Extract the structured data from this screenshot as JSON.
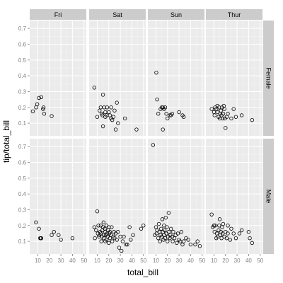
{
  "chart_data": {
    "type": "scatter",
    "title": "",
    "xlabel": "total_bill",
    "ylabel": "tip/total_bill",
    "xlim": [
      3,
      52
    ],
    "ylim": [
      0.02,
      0.75
    ],
    "xticks": [
      10,
      20,
      30,
      40,
      50
    ],
    "yticks": [
      0.1,
      0.2,
      0.3,
      0.4,
      0.5,
      0.6,
      0.7
    ],
    "col_facet_labels": [
      "Fri",
      "Sat",
      "Sun",
      "Thur"
    ],
    "row_facet_labels": [
      "Female",
      "Male"
    ],
    "grid": true,
    "colors": {
      "panel": "#ebebeb",
      "grid_major": "#ffffff",
      "grid_minor": "#f5f5f5",
      "strip": "#cccccc",
      "point": "#000000",
      "text": "#7f7f7f",
      "axis_title": "#000000"
    },
    "panels": [
      {
        "day": "Fri",
        "sex": "Female",
        "points": [
          [
            5.7,
            0.175
          ],
          [
            8.5,
            0.2
          ],
          [
            9.5,
            0.22
          ],
          [
            11,
            0.26
          ],
          [
            13,
            0.265
          ],
          [
            14.5,
            0.19
          ],
          [
            15,
            0.2
          ],
          [
            15.5,
            0.16
          ],
          [
            22,
            0.145
          ]
        ]
      },
      {
        "day": "Sat",
        "sex": "Female",
        "points": [
          [
            7.5,
            0.325
          ],
          [
            10,
            0.14
          ],
          [
            12,
            0.18
          ],
          [
            13,
            0.2
          ],
          [
            14,
            0.16
          ],
          [
            14.5,
            0.15
          ],
          [
            15,
            0.08
          ],
          [
            15,
            0.28
          ],
          [
            16,
            0.2
          ],
          [
            17,
            0.14
          ],
          [
            17,
            0.17
          ],
          [
            18,
            0.15
          ],
          [
            18.5,
            0.2
          ],
          [
            20,
            0.17
          ],
          [
            21,
            0.15
          ],
          [
            22,
            0.2
          ],
          [
            22,
            0.13
          ],
          [
            23,
            0.12
          ],
          [
            24,
            0.14
          ],
          [
            25,
            0.18
          ],
          [
            26,
            0.06
          ],
          [
            27,
            0.23
          ],
          [
            28,
            0.1
          ],
          [
            34,
            0.13
          ],
          [
            44,
            0.06
          ]
        ]
      },
      {
        "day": "Sun",
        "sex": "Female",
        "points": [
          [
            10.3,
            0.42
          ],
          [
            11,
            0.25
          ],
          [
            12,
            0.16
          ],
          [
            14,
            0.19
          ],
          [
            15,
            0.2
          ],
          [
            16,
            0.2
          ],
          [
            16,
            0.06
          ],
          [
            17,
            0.19
          ],
          [
            18,
            0.2
          ],
          [
            19,
            0.16
          ],
          [
            20,
            0.13
          ],
          [
            22,
            0.15
          ],
          [
            23,
            0.15
          ],
          [
            24,
            0.16
          ],
          [
            30,
            0.17
          ],
          [
            33,
            0.15
          ],
          [
            34,
            0.14
          ]
        ]
      },
      {
        "day": "Thur",
        "sex": "Female",
        "points": [
          [
            8,
            0.19
          ],
          [
            10,
            0.17
          ],
          [
            10.5,
            0.15
          ],
          [
            11,
            0.2
          ],
          [
            12,
            0.19
          ],
          [
            13,
            0.17
          ],
          [
            13,
            0.21
          ],
          [
            14,
            0.14
          ],
          [
            14.5,
            0.2
          ],
          [
            15,
            0.13
          ],
          [
            15.5,
            0.16
          ],
          [
            16,
            0.18
          ],
          [
            16.5,
            0.15
          ],
          [
            17,
            0.2
          ],
          [
            17.5,
            0.13
          ],
          [
            18,
            0.16
          ],
          [
            18.5,
            0.21
          ],
          [
            19,
            0.19
          ],
          [
            19.5,
            0.13
          ],
          [
            20,
            0.07
          ],
          [
            21,
            0.14
          ],
          [
            22,
            0.16
          ],
          [
            25,
            0.13
          ],
          [
            27,
            0.19
          ],
          [
            29,
            0.14
          ],
          [
            34,
            0.15
          ],
          [
            43,
            0.12
          ]
        ]
      },
      {
        "day": "Fri",
        "sex": "Male",
        "points": [
          [
            8.5,
            0.22
          ],
          [
            11,
            0.18
          ],
          [
            12,
            0.12
          ],
          [
            12.5,
            0.12
          ],
          [
            13,
            0.12
          ],
          [
            22,
            0.14
          ],
          [
            24,
            0.16
          ],
          [
            28,
            0.14
          ],
          [
            30,
            0.11
          ],
          [
            40,
            0.12
          ]
        ]
      },
      {
        "day": "Sat",
        "sex": "Male",
        "points": [
          [
            7.5,
            0.19
          ],
          [
            8,
            0.12
          ],
          [
            9,
            0.17
          ],
          [
            10,
            0.29
          ],
          [
            10.5,
            0.15
          ],
          [
            11,
            0.2
          ],
          [
            11.5,
            0.13
          ],
          [
            12,
            0.14
          ],
          [
            12.5,
            0.16
          ],
          [
            13,
            0.15
          ],
          [
            13,
            0.2
          ],
          [
            13.5,
            0.1
          ],
          [
            14,
            0.13
          ],
          [
            14.5,
            0.17
          ],
          [
            15,
            0.19
          ],
          [
            15.5,
            0.12
          ],
          [
            15.5,
            0.22
          ],
          [
            16,
            0.14
          ],
          [
            16.5,
            0.18
          ],
          [
            17,
            0.1
          ],
          [
            17,
            0.16
          ],
          [
            17.5,
            0.14
          ],
          [
            18,
            0.2
          ],
          [
            18,
            0.11
          ],
          [
            18.5,
            0.15
          ],
          [
            19,
            0.13
          ],
          [
            19.5,
            0.17
          ],
          [
            20,
            0.09
          ],
          [
            20,
            0.19
          ],
          [
            20.5,
            0.15
          ],
          [
            21,
            0.12
          ],
          [
            21,
            0.16
          ],
          [
            22,
            0.14
          ],
          [
            22.5,
            0.19
          ],
          [
            23,
            0.1
          ],
          [
            24,
            0.13
          ],
          [
            24.5,
            0.16
          ],
          [
            25,
            0.12
          ],
          [
            26,
            0.15
          ],
          [
            27,
            0.11
          ],
          [
            28,
            0.16
          ],
          [
            29,
            0.06
          ],
          [
            30,
            0.13
          ],
          [
            31,
            0.04
          ],
          [
            32,
            0.1
          ],
          [
            33,
            0.13
          ],
          [
            35,
            0.08
          ],
          [
            36,
            0.08
          ],
          [
            38,
            0.19
          ],
          [
            39,
            0.11
          ],
          [
            41,
            0.14
          ],
          [
            48,
            0.18
          ],
          [
            50,
            0.2
          ]
        ]
      },
      {
        "day": "Sun",
        "sex": "Male",
        "points": [
          [
            7.5,
            0.71
          ],
          [
            9,
            0.14
          ],
          [
            10,
            0.19
          ],
          [
            10.5,
            0.15
          ],
          [
            11,
            0.17
          ],
          [
            12,
            0.12
          ],
          [
            12.5,
            0.21
          ],
          [
            13,
            0.16
          ],
          [
            13.5,
            0.1
          ],
          [
            14,
            0.14
          ],
          [
            14.5,
            0.18
          ],
          [
            15,
            0.13
          ],
          [
            15.5,
            0.24
          ],
          [
            16,
            0.16
          ],
          [
            16.5,
            0.11
          ],
          [
            17,
            0.2
          ],
          [
            17,
            0.14
          ],
          [
            17.5,
            0.17
          ],
          [
            18,
            0.12
          ],
          [
            18.5,
            0.25
          ],
          [
            19,
            0.15
          ],
          [
            19.5,
            0.19
          ],
          [
            20,
            0.1
          ],
          [
            20.5,
            0.13
          ],
          [
            21,
            0.16
          ],
          [
            21,
            0.28
          ],
          [
            22,
            0.12
          ],
          [
            22.5,
            0.14
          ],
          [
            23,
            0.18
          ],
          [
            24,
            0.13
          ],
          [
            24.5,
            0.1
          ],
          [
            25,
            0.16
          ],
          [
            26,
            0.12
          ],
          [
            27,
            0.14
          ],
          [
            28,
            0.09
          ],
          [
            29,
            0.15
          ],
          [
            30,
            0.11
          ],
          [
            31,
            0.1
          ],
          [
            32,
            0.16
          ],
          [
            33,
            0.08
          ],
          [
            34,
            0.1
          ],
          [
            36,
            0.12
          ],
          [
            38,
            0.11
          ],
          [
            40,
            0.08
          ],
          [
            44,
            0.08
          ],
          [
            46,
            0.1
          ],
          [
            48,
            0.07
          ]
        ]
      },
      {
        "day": "Thur",
        "sex": "Male",
        "points": [
          [
            8,
            0.27
          ],
          [
            9,
            0.19
          ],
          [
            10,
            0.2
          ],
          [
            10.5,
            0.16
          ],
          [
            11,
            0.2
          ],
          [
            12,
            0.12
          ],
          [
            12.5,
            0.15
          ],
          [
            13,
            0.13
          ],
          [
            14,
            0.17
          ],
          [
            14.5,
            0.2
          ],
          [
            15,
            0.24
          ],
          [
            15.5,
            0.14
          ],
          [
            16,
            0.16
          ],
          [
            16.5,
            0.12
          ],
          [
            17,
            0.19
          ],
          [
            17.5,
            0.15
          ],
          [
            18,
            0.21
          ],
          [
            19,
            0.13
          ],
          [
            20,
            0.16
          ],
          [
            21,
            0.12
          ],
          [
            22,
            0.15
          ],
          [
            22,
            0.2
          ],
          [
            24,
            0.11
          ],
          [
            25,
            0.18
          ],
          [
            27,
            0.15
          ],
          [
            29,
            0.12
          ],
          [
            32,
            0.15
          ],
          [
            34,
            0.17
          ],
          [
            40,
            0.16
          ],
          [
            41,
            0.12
          ],
          [
            43,
            0.09
          ]
        ]
      }
    ]
  }
}
